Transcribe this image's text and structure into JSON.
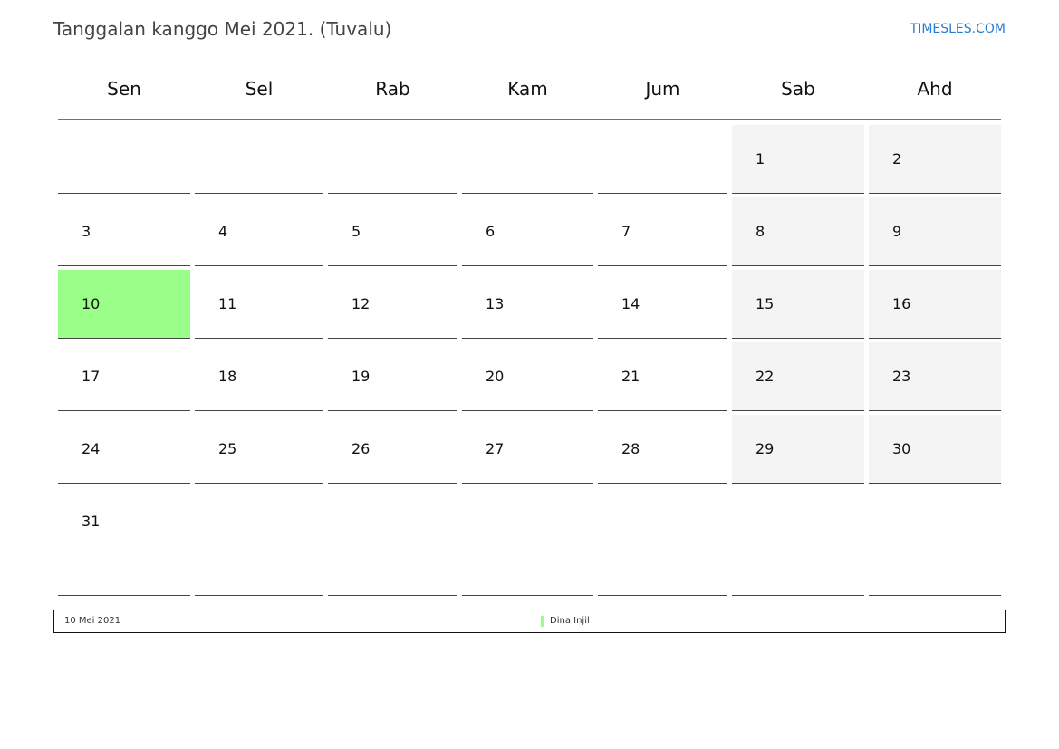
{
  "title": "Tanggalan kanggo Mei 2021. (Tuvalu)",
  "brand": "TIMESLES.COM",
  "colors": {
    "weekend": "#f4f4f4",
    "holiday": "#99ff88",
    "header_line": "#5577a0",
    "brand": "#2a7bd0"
  },
  "weekdays": [
    "Sen",
    "Sel",
    "Rab",
    "Kam",
    "Jum",
    "Sab",
    "Ahd"
  ],
  "weeks": [
    [
      "",
      "",
      "",
      "",
      "",
      "1",
      "2"
    ],
    [
      "3",
      "4",
      "5",
      "6",
      "7",
      "8",
      "9"
    ],
    [
      "10",
      "11",
      "12",
      "13",
      "14",
      "15",
      "16"
    ],
    [
      "17",
      "18",
      "19",
      "20",
      "21",
      "22",
      "23"
    ],
    [
      "24",
      "25",
      "26",
      "27",
      "28",
      "29",
      "30"
    ],
    [
      "31",
      "",
      "",
      "",
      "",
      "",
      ""
    ]
  ],
  "highlighted_day": "10",
  "legend": {
    "date": "10 Mei 2021",
    "holiday": "Dina Injil"
  }
}
